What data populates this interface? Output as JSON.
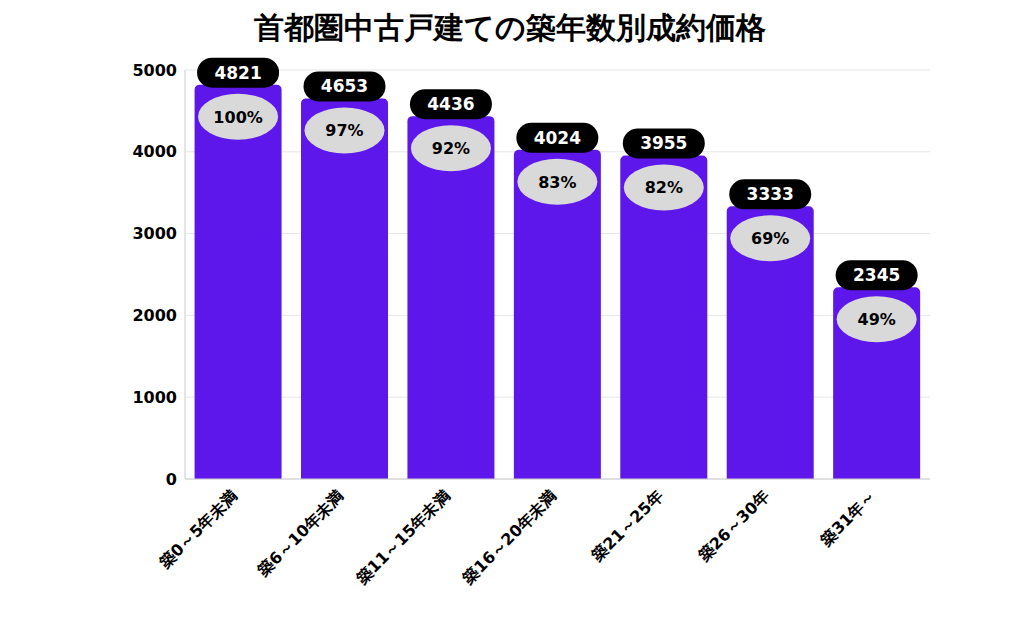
{
  "chart_data": {
    "type": "bar",
    "title": "首都圏中古戸建ての築年数別成約価格",
    "categories": [
      "築0～5年未満",
      "築6～10年未満",
      "築11～15年未満",
      "築16～20年未満",
      "築21～25年",
      "築26～30年",
      "築31年～"
    ],
    "values": [
      4821,
      4653,
      4436,
      4024,
      3955,
      3333,
      2345
    ],
    "percent_labels": [
      "100%",
      "97%",
      "92%",
      "83%",
      "82%",
      "69%",
      "49%"
    ],
    "color": "#5e17eb",
    "ylim": [
      0,
      5000
    ],
    "yticks": [
      0,
      1000,
      2000,
      3000,
      4000,
      5000
    ],
    "grid": true,
    "data_labels": true
  }
}
